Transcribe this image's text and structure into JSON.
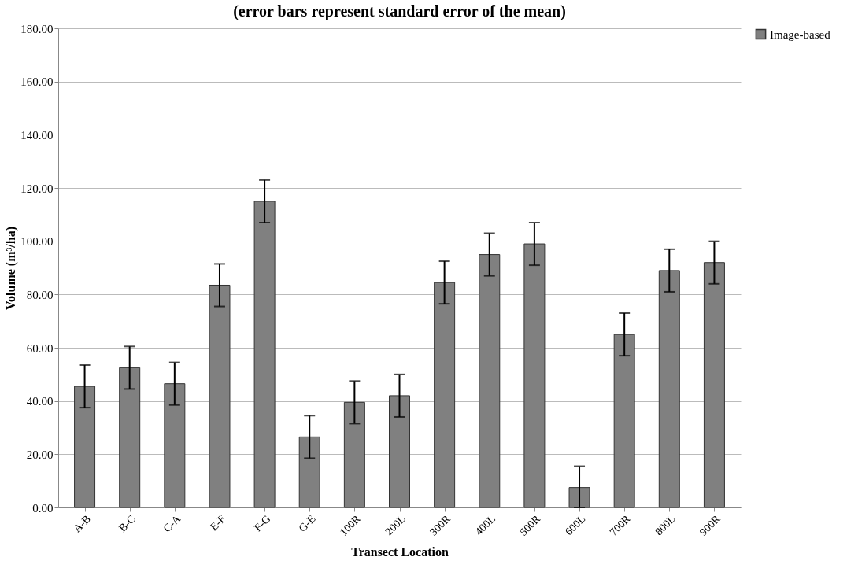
{
  "chart_data": {
    "type": "bar",
    "subtitle": "(error bars represent standard error of the mean)",
    "xlabel": "Transect Location",
    "ylabel": "Volume (m³/ha)",
    "categories": [
      "A-B",
      "B-C",
      "C-A",
      "E-F",
      "F-G",
      "G-E",
      "100R",
      "200L",
      "300R",
      "400L",
      "500R",
      "600L",
      "700R",
      "800L",
      "900R"
    ],
    "series": [
      {
        "name": "Image-based",
        "color": "#808080",
        "values": [
          45.5,
          52.5,
          46.5,
          83.5,
          115,
          26.5,
          39.5,
          42,
          84.5,
          95,
          99,
          7.5,
          65,
          89,
          92
        ],
        "errors": [
          8,
          8,
          8,
          8,
          8,
          8,
          8,
          8,
          8,
          8,
          8,
          [
            7.5,
            8
          ],
          8,
          8,
          8
        ]
      }
    ],
    "ylim": [
      0,
      180
    ],
    "yticks": [
      {
        "value": 0,
        "label": "0.00"
      },
      {
        "value": 20,
        "label": "20.00"
      },
      {
        "value": 40,
        "label": "40.00"
      },
      {
        "value": 60,
        "label": "60.00"
      },
      {
        "value": 80,
        "label": "80.00"
      },
      {
        "value": 100,
        "label": "100.00"
      },
      {
        "value": 120,
        "label": "120.00"
      },
      {
        "value": 140,
        "label": "140.00"
      },
      {
        "value": 160,
        "label": "160.00"
      },
      {
        "value": 180,
        "label": "180.00"
      }
    ],
    "grid": "y",
    "legend": "right"
  }
}
